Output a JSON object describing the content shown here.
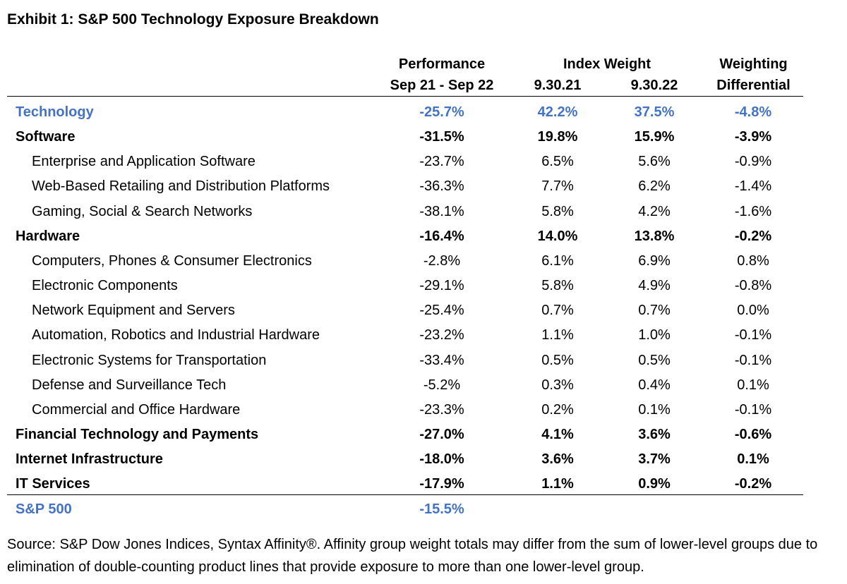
{
  "title": "Exhibit 1: S&P 500 Technology Exposure Breakdown",
  "headers": {
    "performance_line1": "Performance",
    "performance_line2": "Sep 21 - Sep 22",
    "index_weight": "Index Weight",
    "weight_2021": "9.30.21",
    "weight_2022": "9.30.22",
    "differential_line1": "Weighting",
    "differential_line2": "Differential"
  },
  "colors": {
    "accent": "#4472C4",
    "text": "#000000",
    "rule": "#000000"
  },
  "rows": [
    {
      "label": "Technology",
      "performance": "-25.7%",
      "w2021": "42.2%",
      "w2022": "37.5%",
      "diff": "-4.8%",
      "style": "accent"
    },
    {
      "label": "Software",
      "performance": "-31.5%",
      "w2021": "19.8%",
      "w2022": "15.9%",
      "diff": "-3.9%",
      "style": "bold"
    },
    {
      "label": "Enterprise and Application Software",
      "performance": "-23.7%",
      "w2021": "6.5%",
      "w2022": "5.6%",
      "diff": "-0.9%",
      "style": "sub"
    },
    {
      "label": "Web-Based Retailing and Distribution Platforms",
      "performance": "-36.3%",
      "w2021": "7.7%",
      "w2022": "6.2%",
      "diff": "-1.4%",
      "style": "sub"
    },
    {
      "label": "Gaming, Social & Search Networks",
      "performance": "-38.1%",
      "w2021": "5.8%",
      "w2022": "4.2%",
      "diff": "-1.6%",
      "style": "sub"
    },
    {
      "label": "Hardware",
      "performance": "-16.4%",
      "w2021": "14.0%",
      "w2022": "13.8%",
      "diff": "-0.2%",
      "style": "bold"
    },
    {
      "label": "Computers, Phones & Consumer Electronics",
      "performance": "-2.8%",
      "w2021": "6.1%",
      "w2022": "6.9%",
      "diff": "0.8%",
      "style": "sub"
    },
    {
      "label": "Electronic Components",
      "performance": "-29.1%",
      "w2021": "5.8%",
      "w2022": "4.9%",
      "diff": "-0.8%",
      "style": "sub"
    },
    {
      "label": "Network Equipment and Servers",
      "performance": "-25.4%",
      "w2021": "0.7%",
      "w2022": "0.7%",
      "diff": "0.0%",
      "style": "sub"
    },
    {
      "label": "Automation, Robotics and Industrial Hardware",
      "performance": "-23.2%",
      "w2021": "1.1%",
      "w2022": "1.0%",
      "diff": "-0.1%",
      "style": "sub"
    },
    {
      "label": "Electronic Systems for Transportation",
      "performance": "-33.4%",
      "w2021": "0.5%",
      "w2022": "0.5%",
      "diff": "-0.1%",
      "style": "sub"
    },
    {
      "label": "Defense and Surveillance Tech",
      "performance": "-5.2%",
      "w2021": "0.3%",
      "w2022": "0.4%",
      "diff": "0.1%",
      "style": "sub"
    },
    {
      "label": "Commercial and Office Hardware",
      "performance": "-23.3%",
      "w2021": "0.2%",
      "w2022": "0.1%",
      "diff": "-0.1%",
      "style": "sub"
    },
    {
      "label": "Financial Technology and Payments",
      "performance": "-27.0%",
      "w2021": "4.1%",
      "w2022": "3.6%",
      "diff": "-0.6%",
      "style": "bold"
    },
    {
      "label": "Internet Infrastructure",
      "performance": "-18.0%",
      "w2021": "3.6%",
      "w2022": "3.7%",
      "diff": "0.1%",
      "style": "bold"
    },
    {
      "label": "IT Services",
      "performance": "-17.9%",
      "w2021": "1.1%",
      "w2022": "0.9%",
      "diff": "-0.2%",
      "style": "bold"
    }
  ],
  "footer_row": {
    "label": "S&P 500",
    "performance": "-15.5%",
    "style": "accent"
  },
  "source": "Source: S&P Dow Jones Indices, Syntax Affinity®. Affinity group weight totals may differ from the sum of lower-level groups due to elimination of double-counting product lines that provide exposure to more than one lower-level group.",
  "chart_data": {
    "type": "table",
    "title": "Exhibit 1: S&P 500 Technology Exposure Breakdown",
    "columns": [
      "Performance Sep 21 - Sep 22",
      "Index Weight 9.30.21",
      "Index Weight 9.30.22",
      "Weighting Differential"
    ],
    "units": "%",
    "series": [
      {
        "name": "Technology",
        "values": [
          -25.7,
          42.2,
          37.5,
          -4.8
        ]
      },
      {
        "name": "Software",
        "values": [
          -31.5,
          19.8,
          15.9,
          -3.9
        ]
      },
      {
        "name": "Enterprise and Application Software",
        "values": [
          -23.7,
          6.5,
          5.6,
          -0.9
        ]
      },
      {
        "name": "Web-Based Retailing and Distribution Platforms",
        "values": [
          -36.3,
          7.7,
          6.2,
          -1.4
        ]
      },
      {
        "name": "Gaming, Social & Search Networks",
        "values": [
          -38.1,
          5.8,
          4.2,
          -1.6
        ]
      },
      {
        "name": "Hardware",
        "values": [
          -16.4,
          14.0,
          13.8,
          -0.2
        ]
      },
      {
        "name": "Computers, Phones & Consumer Electronics",
        "values": [
          -2.8,
          6.1,
          6.9,
          0.8
        ]
      },
      {
        "name": "Electronic Components",
        "values": [
          -29.1,
          5.8,
          4.9,
          -0.8
        ]
      },
      {
        "name": "Network Equipment and Servers",
        "values": [
          -25.4,
          0.7,
          0.7,
          0.0
        ]
      },
      {
        "name": "Automation, Robotics and Industrial Hardware",
        "values": [
          -23.2,
          1.1,
          1.0,
          -0.1
        ]
      },
      {
        "name": "Electronic Systems for Transportation",
        "values": [
          -33.4,
          0.5,
          0.5,
          -0.1
        ]
      },
      {
        "name": "Defense and Surveillance Tech",
        "values": [
          -5.2,
          0.3,
          0.4,
          0.1
        ]
      },
      {
        "name": "Commercial and Office Hardware",
        "values": [
          -23.3,
          0.2,
          0.1,
          -0.1
        ]
      },
      {
        "name": "Financial Technology and Payments",
        "values": [
          -27.0,
          4.1,
          3.6,
          -0.6
        ]
      },
      {
        "name": "Internet Infrastructure",
        "values": [
          -18.0,
          3.6,
          3.7,
          0.1
        ]
      },
      {
        "name": "IT Services",
        "values": [
          -17.9,
          1.1,
          0.9,
          -0.2
        ]
      },
      {
        "name": "S&P 500",
        "values": [
          -15.5,
          null,
          null,
          null
        ]
      }
    ]
  }
}
